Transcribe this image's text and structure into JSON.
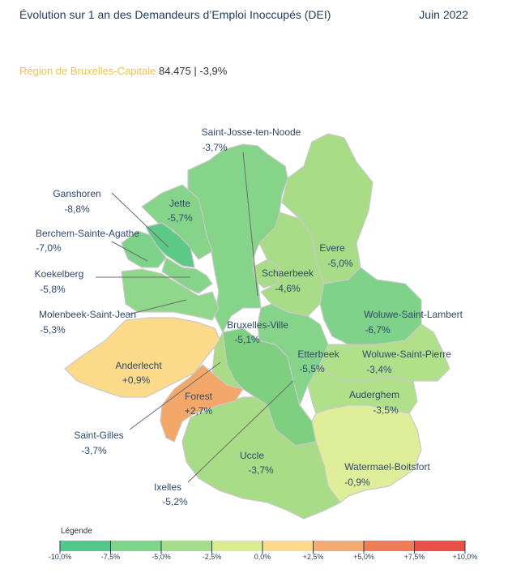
{
  "header": {
    "title": "Évolution sur 1 an des Demandeurs d’Emploi Inoccupés (DEI)",
    "date": "Juin 2022"
  },
  "region": {
    "name": "Région de Bruxelles-Capitale",
    "value": "84.475 | -3,9%"
  },
  "communes": [
    {
      "name": "Saint-Josse-ten-Noode",
      "value": "-3,7%"
    },
    {
      "name": "Ganshoren",
      "value": "-8,8%"
    },
    {
      "name": "Jette",
      "value": "-5,7%"
    },
    {
      "name": "Berchem-Sainte-Agathe",
      "value": "-7,0%"
    },
    {
      "name": "Koekelberg",
      "value": "-5,8%"
    },
    {
      "name": "Molenbeek-Saint-Jean",
      "value": "-5,3%"
    },
    {
      "name": "Evere",
      "value": "-5,0%"
    },
    {
      "name": "Schaerbeek",
      "value": "-4,6%"
    },
    {
      "name": "Woluwe-Saint-Lambert",
      "value": "-6,7%"
    },
    {
      "name": "Bruxelles-Ville",
      "value": "-5,1%"
    },
    {
      "name": "Etterbeek",
      "value": "-5,5%"
    },
    {
      "name": "Woluwe-Saint-Pierre",
      "value": "-3,4%"
    },
    {
      "name": "Anderlecht",
      "value": "+0,9%"
    },
    {
      "name": "Forest",
      "value": "+2,7%"
    },
    {
      "name": "Auderghem",
      "value": "-3,5%"
    },
    {
      "name": "Saint-Gilles",
      "value": "-3,7%"
    },
    {
      "name": "Uccle",
      "value": "-3,7%"
    },
    {
      "name": "Watermael-Boitsfort",
      "value": "-0,9%"
    },
    {
      "name": "Ixelles",
      "value": "-5,2%"
    }
  ],
  "legend": {
    "title": "Légende",
    "ticks": [
      "-10,0%",
      "-7,5%",
      "-5,0%",
      "-2,5%",
      "0,0%",
      "+2,5%",
      "+5,0%",
      "+7,5%",
      "+10,0%"
    ],
    "colors": [
      "#52c98a",
      "#7fd48c",
      "#a6dd8a",
      "#d9ec8e",
      "#fbdb8a",
      "#f5ab6d",
      "#ee7d58",
      "#e8504a"
    ]
  },
  "colors": {
    "accent_region": "#f2c53d",
    "title_text": "#1f3a5a"
  }
}
